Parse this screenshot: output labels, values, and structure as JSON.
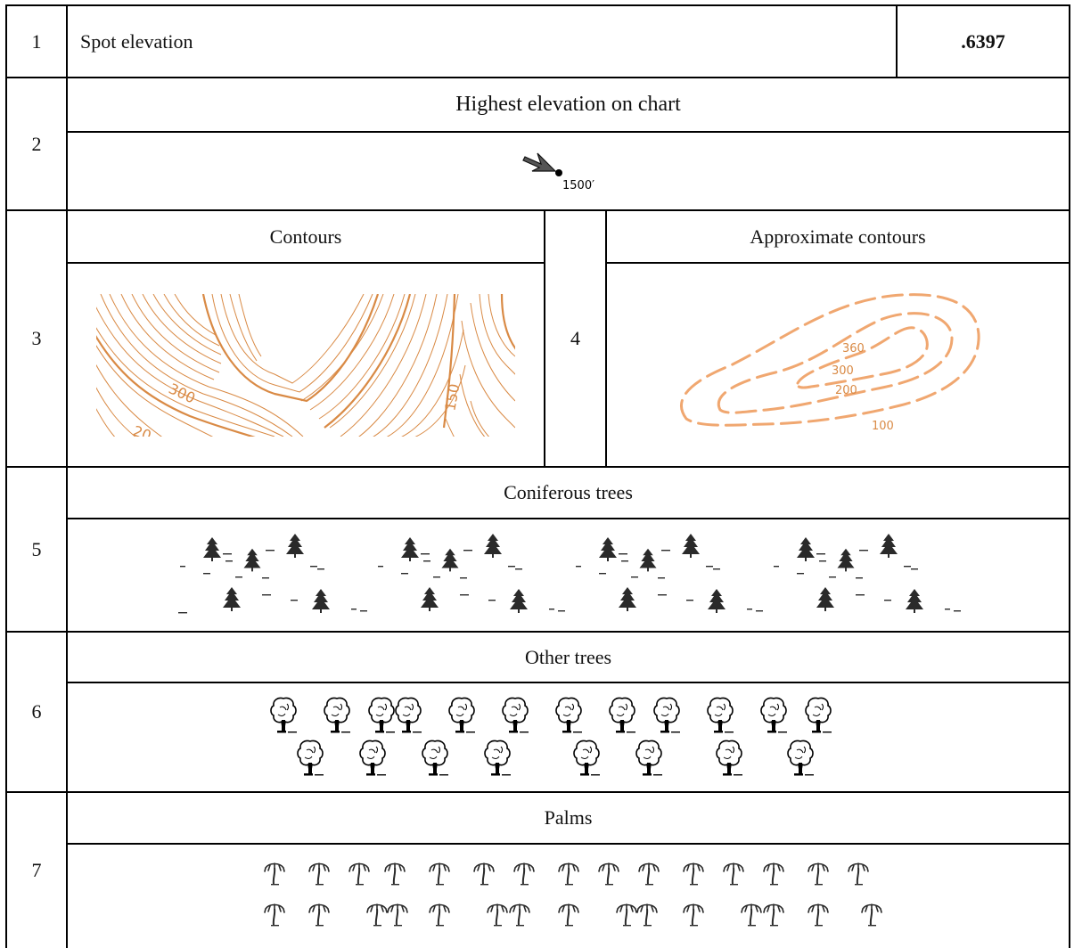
{
  "rows": [
    {
      "num": "1",
      "label": "Spot elevation",
      "code": ".6397"
    },
    {
      "num": "2",
      "heading": "Highest elevation on chart",
      "marker_text": "1500′"
    },
    {
      "num": "3",
      "heading": "Contours",
      "labels": [
        "300",
        "150",
        "20"
      ]
    },
    {
      "num": "4",
      "heading": "Approximate contours",
      "labels": [
        "360",
        "300",
        "200",
        "100"
      ]
    },
    {
      "num": "5",
      "heading": "Coniferous trees",
      "icon": "conifer-tree-icon"
    },
    {
      "num": "6",
      "heading": "Other trees",
      "icon": "deciduous-tree-icon"
    },
    {
      "num": "7",
      "heading": "Palms",
      "icon": "palm-tree-icon"
    }
  ],
  "colors": {
    "contour": "#d98a45",
    "approx": "#f0a770",
    "ink": "#000000",
    "symbol": "#2a2a2a"
  }
}
